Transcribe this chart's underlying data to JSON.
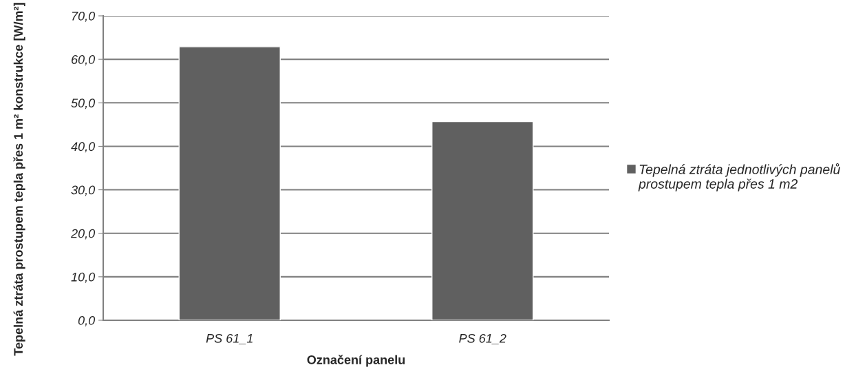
{
  "chart_data": {
    "type": "bar",
    "categories": [
      "PS 61_1",
      "PS 61_2"
    ],
    "series": [
      {
        "name": "Tepelná ztráta jednotlivých panelů prostupem tepla přes 1 m2",
        "color": "#606060",
        "values": [
          62.9,
          45.7
        ]
      }
    ],
    "xlabel": "Označení panelu",
    "ylabel": "Tepelná ztráta prostupem tepla přes 1 m² konstrukce [W/m²]",
    "ylim": [
      0,
      70
    ],
    "yticks": [
      {
        "value": 0,
        "label": "0,0"
      },
      {
        "value": 10,
        "label": "10,0"
      },
      {
        "value": 20,
        "label": "20,0"
      },
      {
        "value": 30,
        "label": "30,0"
      },
      {
        "value": 40,
        "label": "40,0"
      },
      {
        "value": 50,
        "label": "50,0"
      },
      {
        "value": 60,
        "label": "60,0"
      },
      {
        "value": 70,
        "label": "70,0"
      }
    ],
    "grid": "y",
    "legend": "right"
  }
}
